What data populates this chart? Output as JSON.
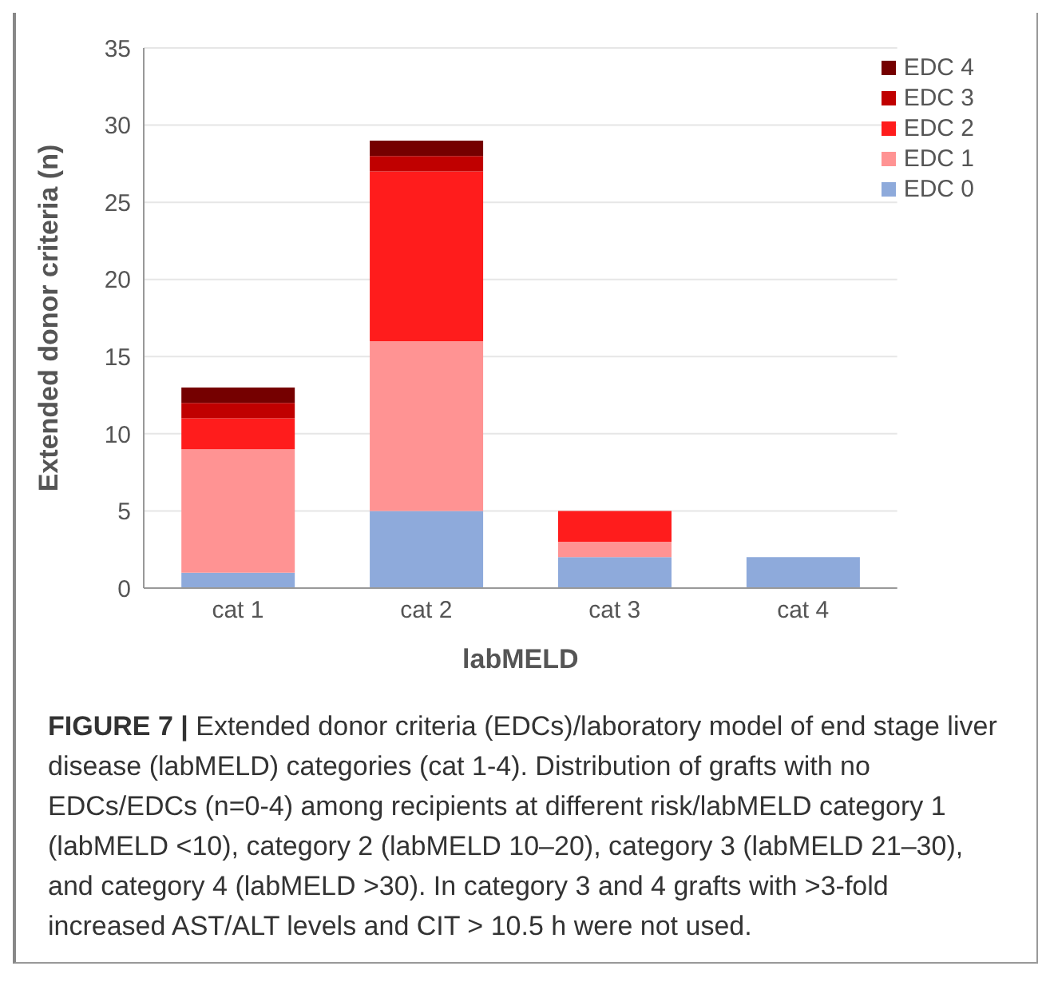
{
  "chart_data": {
    "type": "bar",
    "stacked": true,
    "xlabel": "labMELD",
    "ylabel": "Extended donor criteria (n)",
    "categories": [
      "cat 1",
      "cat 2",
      "cat 3",
      "cat 4"
    ],
    "series": [
      {
        "name": "EDC 0",
        "color": "#8eaadb",
        "values": [
          1,
          5,
          2,
          2
        ]
      },
      {
        "name": "EDC 1",
        "color": "#ff9393",
        "values": [
          8,
          11,
          1,
          0
        ]
      },
      {
        "name": "EDC 2",
        "color": "#ff1c1c",
        "values": [
          2,
          11,
          2,
          0
        ]
      },
      {
        "name": "EDC 3",
        "color": "#c00000",
        "values": [
          1,
          1,
          0,
          0
        ]
      },
      {
        "name": "EDC 4",
        "color": "#750000",
        "values": [
          1,
          1,
          0,
          0
        ]
      }
    ],
    "ylim": [
      0,
      35
    ],
    "yticks": [
      0,
      5,
      10,
      15,
      20,
      25,
      30,
      35
    ],
    "grid": "y",
    "legend": "top right",
    "annotations": [
      "FIGURE 7 | Extended donor criteria (EDCs)/laboratory model of end stage liver disease (labMELD) categories (cat 1-4). Distribution of grafts with no EDCs/EDCs (n=0-4) among recipients at different risk/labMELD category 1 (labMELD <10), category 2 (labMELD 10–20), category 3 (labMELD 21–30), and category 4 (labMELD >30). In category 3 and 4 grafts with >3-fold increased AST/ALT levels and CIT > 10.5 h were not used."
    ]
  }
}
